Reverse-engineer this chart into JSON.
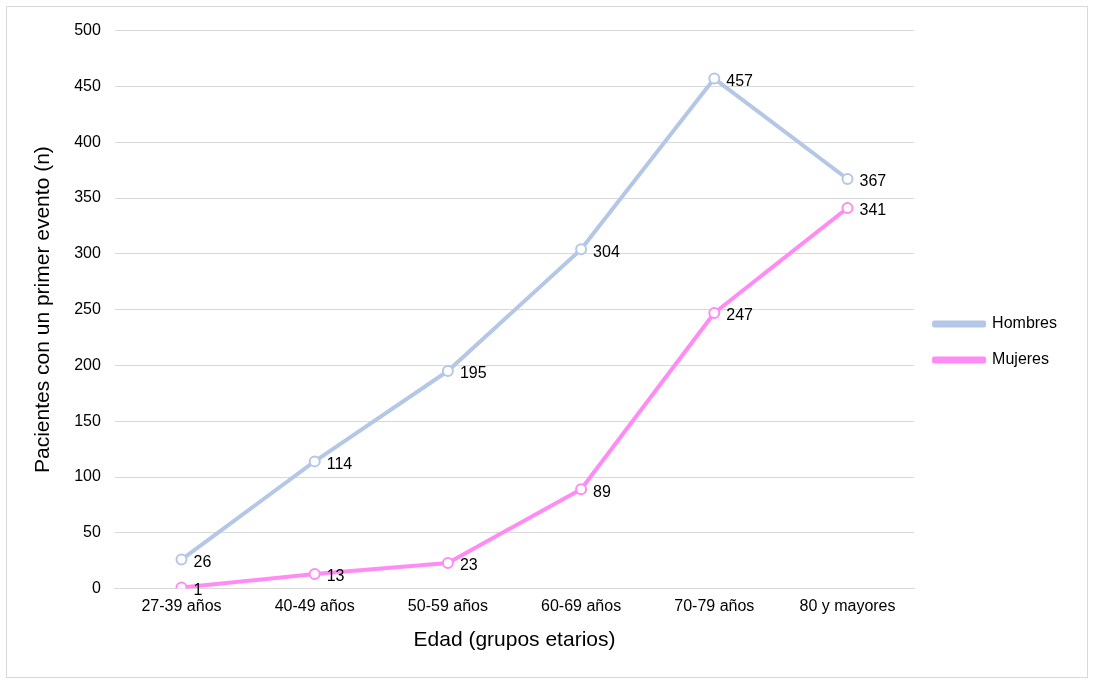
{
  "chart_data": {
    "type": "line",
    "xlabel": "Edad (grupos etarios)",
    "ylabel": "Pacientes con un primer evento (n)",
    "categories": [
      "27-39 años",
      "40-49 años",
      "50-59 años",
      "60-69 años",
      "70-79 años",
      "80 y mayores"
    ],
    "series": [
      {
        "name": "Hombres",
        "color": "#b4c7e7",
        "values": [
          26,
          114,
          195,
          304,
          457,
          367
        ]
      },
      {
        "name": "Mujeres",
        "color": "#ff8cf5",
        "values": [
          1,
          13,
          23,
          89,
          247,
          341
        ]
      }
    ],
    "ylim": [
      0,
      500
    ],
    "yticks": [
      0,
      50,
      100,
      150,
      200,
      250,
      300,
      350,
      400,
      450,
      500
    ],
    "grid": "y",
    "legend": "right",
    "marker": "circle",
    "line_style": "solid",
    "data_labels": true
  }
}
